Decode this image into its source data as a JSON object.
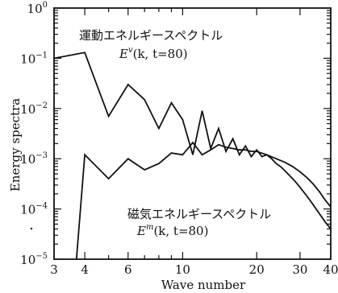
{
  "chart_data": {
    "type": "line",
    "xscale": "log",
    "yscale": "log",
    "xlim": [
      3,
      40
    ],
    "ylim": [
      1e-05,
      1
    ],
    "xlabel": "Wave number",
    "ylabel": "Energy spectra",
    "xticks": [
      {
        "value": 3,
        "label": "3"
      },
      {
        "value": 4,
        "label": "4"
      },
      {
        "value": 6,
        "label": "6"
      },
      {
        "value": 10,
        "label": "10"
      },
      {
        "value": 20,
        "label": "20"
      },
      {
        "value": 30,
        "label": "30"
      },
      {
        "value": 40,
        "label": "40"
      }
    ],
    "yticks": [
      {
        "value": 1,
        "base": "10",
        "exp": "0"
      },
      {
        "value": 0.1,
        "base": "10",
        "exp": "−1"
      },
      {
        "value": 0.01,
        "base": "10",
        "exp": "−2"
      },
      {
        "value": 0.001,
        "base": "10",
        "exp": "−3"
      },
      {
        "value": 0.0001,
        "base": "10",
        "exp": "−4"
      },
      {
        "value": 1e-05,
        "base": "10",
        "exp": "−5"
      }
    ],
    "series": [
      {
        "x": [
          3,
          4,
          5,
          6,
          7,
          8,
          9,
          10,
          11,
          12,
          13,
          14,
          15,
          16,
          17,
          18,
          19,
          20,
          21,
          22,
          23,
          24,
          25,
          26,
          27,
          28,
          29,
          30,
          32,
          34,
          36,
          38,
          40
        ],
        "y": [
          0.1,
          0.13,
          0.007,
          0.03,
          0.015,
          0.004,
          0.013,
          0.006,
          0.0012,
          0.009,
          0.0016,
          0.004,
          0.0014,
          0.0025,
          0.0012,
          0.0018,
          0.0011,
          0.0015,
          0.0011,
          0.0012,
          0.001,
          0.0008,
          0.0007,
          0.00058,
          0.00048,
          0.0004,
          0.00033,
          0.00027,
          0.00018,
          0.00012,
          8e-05,
          5.5e-05,
          4e-05
        ]
      },
      {
        "x": [
          3.7,
          4,
          5,
          6,
          7,
          8,
          9,
          10,
          11,
          12,
          13,
          14,
          15,
          16,
          17,
          18,
          19,
          20,
          22,
          24,
          26,
          28,
          30,
          32,
          34,
          36,
          38,
          40
        ],
        "y": [
          1e-05,
          0.0012,
          0.0004,
          0.001,
          0.0006,
          0.0008,
          0.0013,
          0.0012,
          0.0021,
          0.0012,
          0.0015,
          0.0019,
          0.0017,
          0.0016,
          0.0015,
          0.0015,
          0.0014,
          0.0014,
          0.0012,
          0.001,
          0.00085,
          0.0007,
          0.00055,
          0.00042,
          0.00031,
          0.00022,
          0.00015,
          0.00011
        ]
      }
    ],
    "annotations": [
      {
        "id": "kinetic",
        "text": "運動エネルギースペクトル",
        "label_main": "E",
        "label_sup": "v",
        "label_args": "(k, t=80)"
      },
      {
        "id": "magnetic",
        "text": "磁気エネルギースペクトル",
        "label_main": "E",
        "label_sup": "m",
        "label_args": "(k, t=80)"
      }
    ]
  }
}
